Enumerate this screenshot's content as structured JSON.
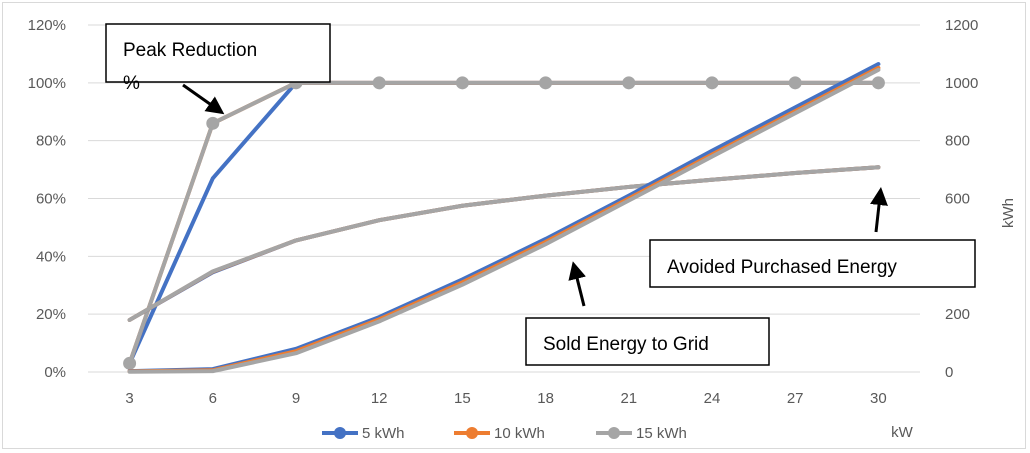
{
  "chart_data": {
    "type": "line",
    "x_unit_label": "kW",
    "y_right_label": "kWh",
    "x": [
      3,
      6,
      9,
      12,
      15,
      18,
      21,
      24,
      27,
      30
    ],
    "y_left_ticks": [
      "0%",
      "20%",
      "40%",
      "60%",
      "80%",
      "100%",
      "120%"
    ],
    "y_right_ticks": [
      "0",
      "200",
      "400",
      "600",
      "800",
      "1000",
      "1200"
    ],
    "ylim_left": [
      0,
      1.2
    ],
    "ylim_right": [
      0,
      1200
    ],
    "grid": true,
    "legend_position": "bottom",
    "colors": {
      "5 kWh": "#4472c4",
      "10 kWh": "#ed7d31",
      "15 kWh": "#a5a5a5"
    },
    "series": [
      {
        "name": "5 kWh",
        "group": "Peak Reduction %",
        "axis": "left",
        "values": [
          0.03,
          0.67,
          1.0,
          1.0,
          1.0,
          1.0,
          1.0,
          1.0,
          1.0,
          1.0
        ]
      },
      {
        "name": "10 kWh",
        "group": "Peak Reduction %",
        "axis": "left",
        "values": [
          0.03,
          0.86,
          1.0,
          1.0,
          1.0,
          1.0,
          1.0,
          1.0,
          1.0,
          1.0
        ]
      },
      {
        "name": "15 kWh",
        "group": "Peak Reduction %",
        "axis": "left",
        "markers": true,
        "values": [
          0.03,
          0.86,
          1.0,
          1.0,
          1.0,
          1.0,
          1.0,
          1.0,
          1.0,
          1.0
        ]
      },
      {
        "name": "5 kWh",
        "group": "Avoided Purchased Energy",
        "axis": "right",
        "values": [
          180,
          345,
          455,
          525,
          575,
          610,
          640,
          665,
          688,
          708
        ]
      },
      {
        "name": "10 kWh",
        "group": "Avoided Purchased Energy",
        "axis": "right",
        "values": [
          180,
          347,
          455,
          525,
          575,
          610,
          640,
          665,
          688,
          708
        ]
      },
      {
        "name": "15 kWh",
        "group": "Avoided Purchased Energy",
        "axis": "right",
        "values": [
          180,
          348,
          455,
          525,
          575,
          610,
          640,
          665,
          688,
          708
        ]
      },
      {
        "name": "5 kWh",
        "group": "Sold Energy to Grid",
        "axis": "right",
        "values": [
          3,
          10,
          80,
          190,
          320,
          460,
          610,
          765,
          915,
          1065
        ]
      },
      {
        "name": "10 kWh",
        "group": "Sold Energy to Grid",
        "axis": "right",
        "values": [
          2,
          6,
          72,
          182,
          310,
          450,
          600,
          752,
          902,
          1052
        ]
      },
      {
        "name": "15 kWh",
        "group": "Sold Energy to Grid",
        "axis": "right",
        "values": [
          1,
          3,
          65,
          175,
          302,
          442,
          593,
          745,
          895,
          1045
        ]
      }
    ],
    "annotations": {
      "peak_reduction_line1": "Peak Reduction",
      "peak_reduction_line2": "%",
      "avoided_purchased_energy": "Avoided Purchased Energy",
      "sold_energy_to_grid": "Sold Energy to Grid"
    },
    "legend": [
      "5 kWh",
      "10 kWh",
      "15 kWh"
    ]
  }
}
